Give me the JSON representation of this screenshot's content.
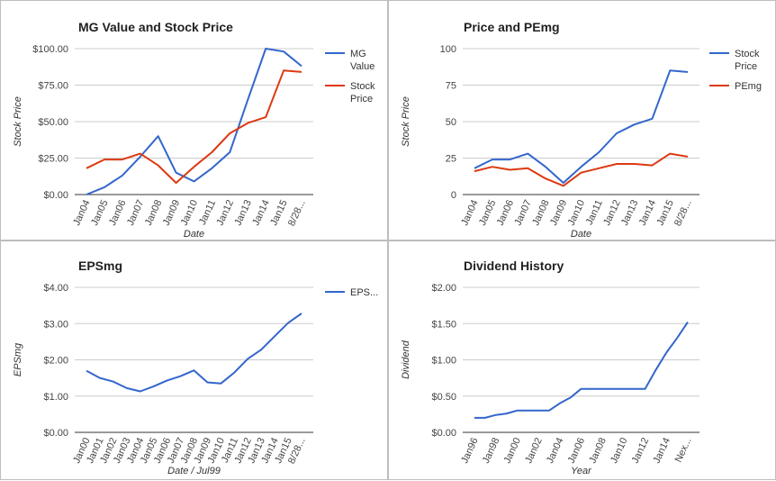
{
  "chart_data": [
    {
      "type": "line",
      "title": "MG Value and Stock Price",
      "xlabel": "Date",
      "ylabel": "Stock Price",
      "categories": [
        "Jan04",
        "Jan05",
        "Jan06",
        "Jan07",
        "Jan08",
        "Jan09",
        "Jan10",
        "Jan11",
        "Jan12",
        "Jan13",
        "Jan14",
        "Jan15",
        "8/28..."
      ],
      "yticks": [
        "$0.00",
        "$25.00",
        "$50.00",
        "$75.00",
        "$100.00"
      ],
      "ylim": [
        0,
        100
      ],
      "series": [
        {
          "name": "MG Value",
          "legend_lines": [
            "MG",
            "Value"
          ],
          "color": "#3366cc",
          "values": [
            0,
            5,
            13,
            26,
            40,
            15,
            9,
            18,
            29,
            65,
            100,
            98,
            88
          ]
        },
        {
          "name": "Stock Price",
          "legend_lines": [
            "Stock",
            "Price"
          ],
          "color": "#dc3912",
          "values": [
            18,
            24,
            24,
            28,
            20,
            8,
            19,
            29,
            42,
            49,
            53,
            85,
            84
          ]
        }
      ],
      "legend": "right",
      "grid": true
    },
    {
      "type": "line",
      "title": "Price and PEmg",
      "xlabel": "Date",
      "ylabel": "Stock Price",
      "categories": [
        "Jan04",
        "Jan05",
        "Jan06",
        "Jan07",
        "Jan08",
        "Jan09",
        "Jan10",
        "Jan11",
        "Jan12",
        "Jan13",
        "Jan14",
        "Jan15",
        "8/28..."
      ],
      "yticks": [
        "0",
        "25",
        "50",
        "75",
        "100"
      ],
      "ylim": [
        0,
        100
      ],
      "series": [
        {
          "name": "Stock Price",
          "legend_lines": [
            "Stock",
            "Price"
          ],
          "color": "#3366cc",
          "values": [
            18,
            24,
            24,
            28,
            19,
            8,
            19,
            29,
            42,
            48,
            52,
            85,
            84
          ]
        },
        {
          "name": "PEmg",
          "legend_lines": [
            "PEmg"
          ],
          "color": "#dc3912",
          "values": [
            16,
            19,
            17,
            18,
            11,
            6,
            15,
            18,
            21,
            21,
            20,
            28,
            26
          ]
        }
      ],
      "legend": "right",
      "grid": true
    },
    {
      "type": "line",
      "title": "EPSmg",
      "xlabel": "Date / Jul99",
      "ylabel": "EPSmg",
      "categories": [
        "Jan00",
        "Jan01",
        "Jan02",
        "Jan03",
        "Jan04",
        "Jan05",
        "Jan06",
        "Jan07",
        "Jan08",
        "Jan09",
        "Jan10",
        "Jan11",
        "Jan12",
        "Jan13",
        "Jan14",
        "Jan15",
        "8/28..."
      ],
      "yticks": [
        "$0.00",
        "$1.00",
        "$2.00",
        "$3.00",
        "$4.00"
      ],
      "ylim": [
        0,
        4
      ],
      "series": [
        {
          "name": "EPS...",
          "legend_lines": [
            "EPS..."
          ],
          "color": "#3366cc",
          "values": [
            1.7,
            1.5,
            1.4,
            1.22,
            1.13,
            1.27,
            1.43,
            1.55,
            1.71,
            1.38,
            1.35,
            1.65,
            2.03,
            2.28,
            2.65,
            3.02,
            3.28
          ]
        }
      ],
      "legend": "right",
      "grid": true
    },
    {
      "type": "line",
      "title": "Dividend History",
      "xlabel": "Year",
      "ylabel": "Dividend",
      "categories": [
        "Jan96",
        "Jan98",
        "Jan00",
        "Jan02",
        "Jan04",
        "Jan06",
        "Jan08",
        "Jan10",
        "Jan12",
        "Jan14",
        "Nex..."
      ],
      "yticks": [
        "$0.00",
        "$0.50",
        "$1.00",
        "$1.50",
        "$2.00"
      ],
      "ylim": [
        0,
        2
      ],
      "x_values": [
        0,
        0.5,
        1,
        1.5,
        2,
        2.5,
        3,
        3.5,
        4,
        4.5,
        5,
        5.5,
        6,
        6.5,
        7,
        7.5,
        8,
        8.5,
        9,
        9.5,
        10
      ],
      "series": [
        {
          "name": "Dividend",
          "color": "#3366cc",
          "values": [
            0.2,
            0.2,
            0.24,
            0.26,
            0.3,
            0.3,
            0.3,
            0.3,
            0.4,
            0.48,
            0.6,
            0.6,
            0.6,
            0.6,
            0.6,
            0.6,
            0.6,
            0.86,
            1.1,
            1.3,
            1.52
          ]
        }
      ],
      "legend": "none",
      "grid": true
    }
  ]
}
